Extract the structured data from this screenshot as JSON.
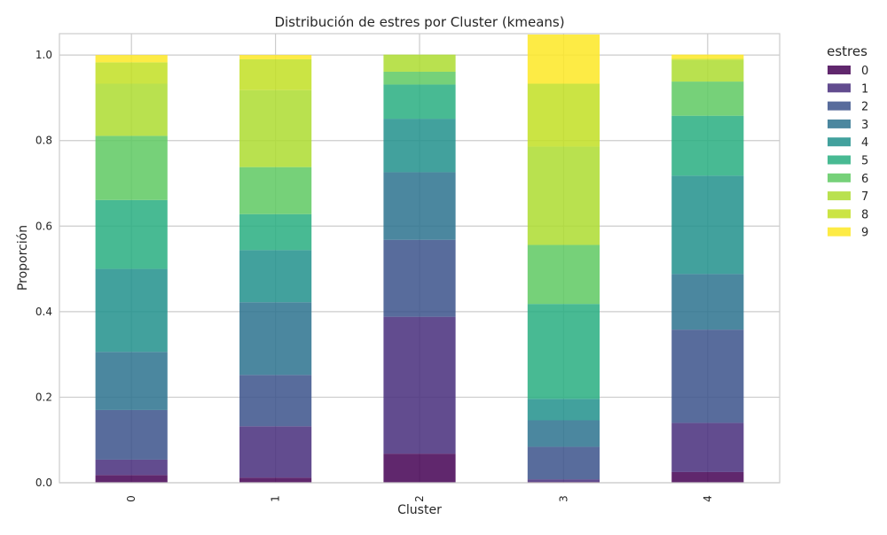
{
  "chart_data": {
    "type": "bar",
    "stacked": true,
    "title": "Distribución de estres por Cluster (kmeans)",
    "xlabel": "Cluster",
    "ylabel": "Proporción",
    "ylim": [
      0,
      1.05
    ],
    "yticks": [
      "0.0",
      "0.2",
      "0.4",
      "0.6",
      "0.8",
      "1.0"
    ],
    "ytick_values": [
      0,
      0.2,
      0.4,
      0.6,
      0.8,
      1.0
    ],
    "categories": [
      "0",
      "1",
      "2",
      "3",
      "4"
    ],
    "grid": true,
    "legend": {
      "title": "estres",
      "placement": "outside right"
    },
    "series": [
      {
        "name": "0",
        "color": "#440154",
        "values": [
          0.018,
          0.012,
          0.068,
          0.002,
          0.025
        ]
      },
      {
        "name": "1",
        "color": "#472d7b",
        "values": [
          0.036,
          0.12,
          0.32,
          0.006,
          0.115
        ]
      },
      {
        "name": "2",
        "color": "#3b528b",
        "values": [
          0.116,
          0.12,
          0.18,
          0.076,
          0.218
        ]
      },
      {
        "name": "3",
        "color": "#2c728e",
        "values": [
          0.136,
          0.17,
          0.158,
          0.062,
          0.13
        ]
      },
      {
        "name": "4",
        "color": "#21918c",
        "values": [
          0.194,
          0.122,
          0.125,
          0.05,
          0.23
        ]
      },
      {
        "name": "5",
        "color": "#28ae80",
        "values": [
          0.161,
          0.084,
          0.08,
          0.222,
          0.14
        ]
      },
      {
        "name": "6",
        "color": "#5ec962",
        "values": [
          0.15,
          0.11,
          0.03,
          0.138,
          0.08
        ]
      },
      {
        "name": "7",
        "color": "#addc30",
        "values": [
          0.122,
          0.18,
          0.04,
          0.23,
          0.05
        ]
      },
      {
        "name": "8",
        "color": "#c2df23",
        "values": [
          0.05,
          0.072,
          0.0,
          0.147,
          0.003
        ]
      },
      {
        "name": "9",
        "color": "#fde725",
        "values": [
          0.017,
          0.01,
          0.0,
          0.115,
          0.01
        ]
      }
    ]
  }
}
